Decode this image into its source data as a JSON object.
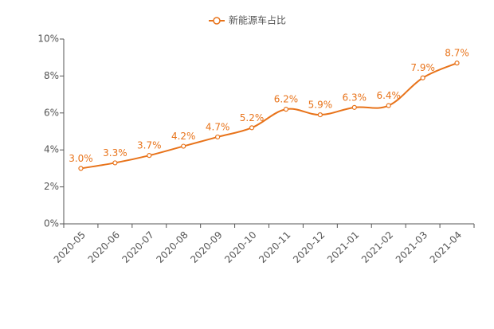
{
  "chart_data": {
    "type": "line",
    "categories": [
      "2020-05",
      "2020-06",
      "2020-07",
      "2020-08",
      "2020-09",
      "2020-10",
      "2020-11",
      "2020-12",
      "2021-01",
      "2021-02",
      "2021-03",
      "2021-04"
    ],
    "series": [
      {
        "name": "新能源车占比",
        "color": "#e8731a",
        "values": [
          3.0,
          3.3,
          3.7,
          4.2,
          4.7,
          5.2,
          6.2,
          5.9,
          6.3,
          6.4,
          7.9,
          8.7
        ],
        "value_labels": [
          "3.0%",
          "3.3%",
          "3.7%",
          "4.2%",
          "4.7%",
          "5.2%",
          "6.2%",
          "5.9%",
          "6.3%",
          "6.4%",
          "7.9%",
          "8.7%"
        ]
      }
    ],
    "ylim": [
      0,
      10
    ],
    "yticks": [
      {
        "value": 0,
        "label": "0%"
      },
      {
        "value": 2,
        "label": "2%"
      },
      {
        "value": 4,
        "label": "4%"
      },
      {
        "value": 6,
        "label": "6%"
      },
      {
        "value": 8,
        "label": "8%"
      },
      {
        "value": 10,
        "label": "10%"
      }
    ],
    "grid": false
  }
}
